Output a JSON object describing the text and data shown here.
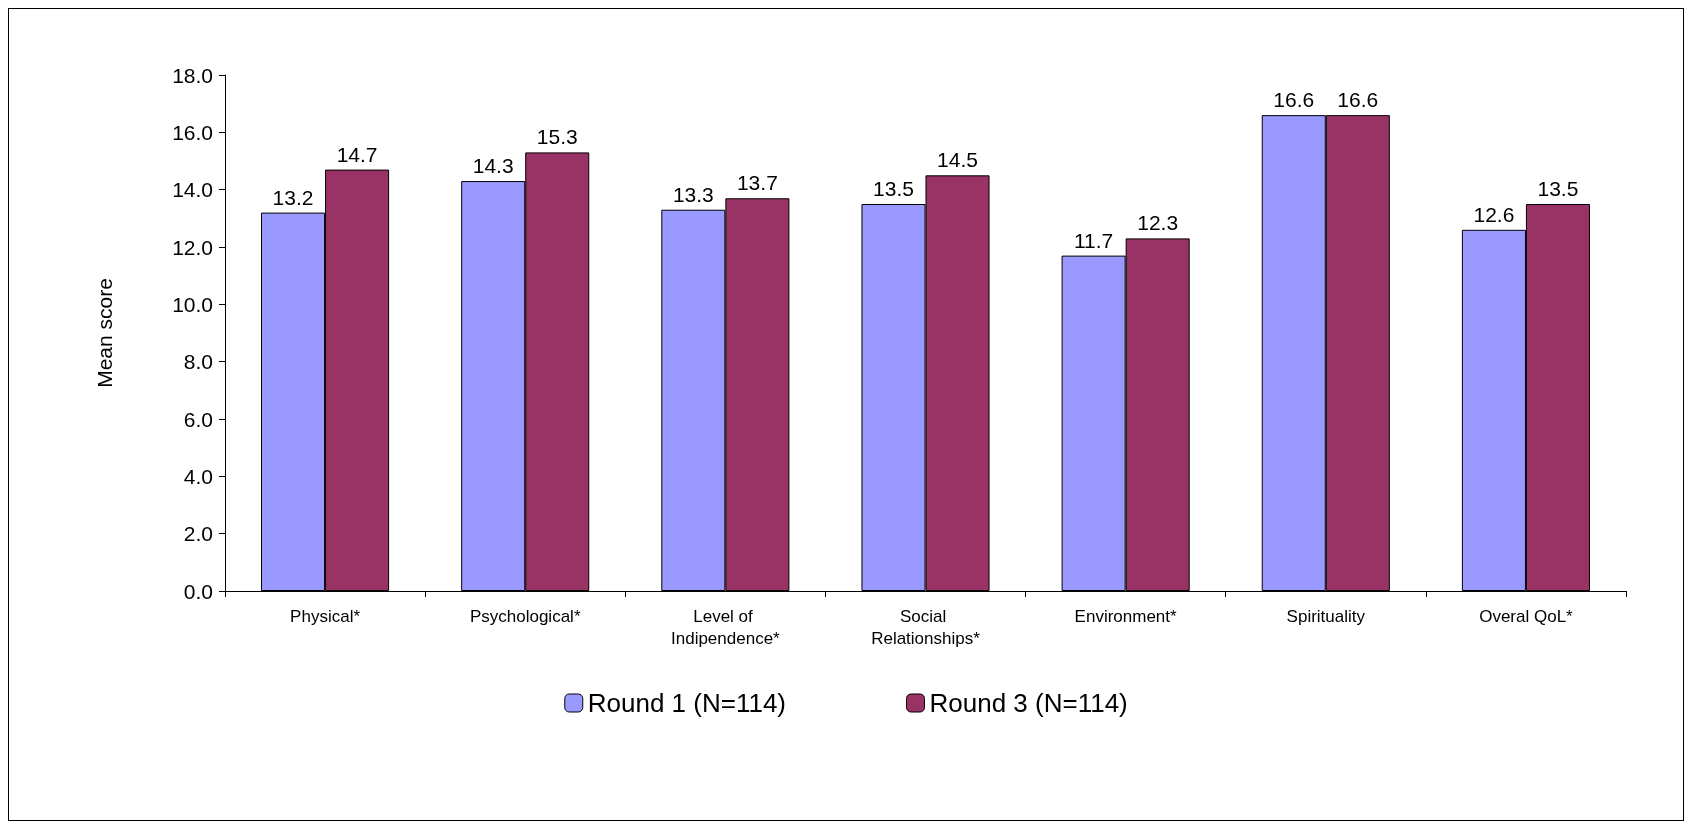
{
  "chart_data": {
    "type": "bar",
    "ylabel": "Mean score",
    "categories": [
      "Physical*",
      "Psychological*",
      "Level of Indipendence*",
      "Social Relationships*",
      "Environment*",
      "Spirituality",
      "Overal QoL*"
    ],
    "series": [
      {
        "name": "Round 1 (N=114)",
        "color": "#9999ff",
        "values": [
          13.2,
          14.3,
          13.3,
          13.5,
          11.7,
          16.6,
          12.6
        ]
      },
      {
        "name": "Round 3 (N=114)",
        "color": "#993366",
        "values": [
          14.7,
          15.3,
          13.7,
          14.5,
          12.3,
          16.6,
          13.5
        ]
      }
    ],
    "ylim": [
      0,
      18
    ],
    "yticks": [
      {
        "value": 0,
        "label": "0.0"
      },
      {
        "value": 2,
        "label": "2.0"
      },
      {
        "value": 4,
        "label": "4.0"
      },
      {
        "value": 6,
        "label": "6.0"
      },
      {
        "value": 8,
        "label": "8.0"
      },
      {
        "value": 10,
        "label": "10.0"
      },
      {
        "value": 12,
        "label": "12.0"
      },
      {
        "value": 14,
        "label": "14.0"
      },
      {
        "value": 16,
        "label": "16.0"
      },
      {
        "value": 18,
        "label": "18.0"
      }
    ],
    "data_labels": true,
    "grid": false,
    "legend": "bottom"
  }
}
